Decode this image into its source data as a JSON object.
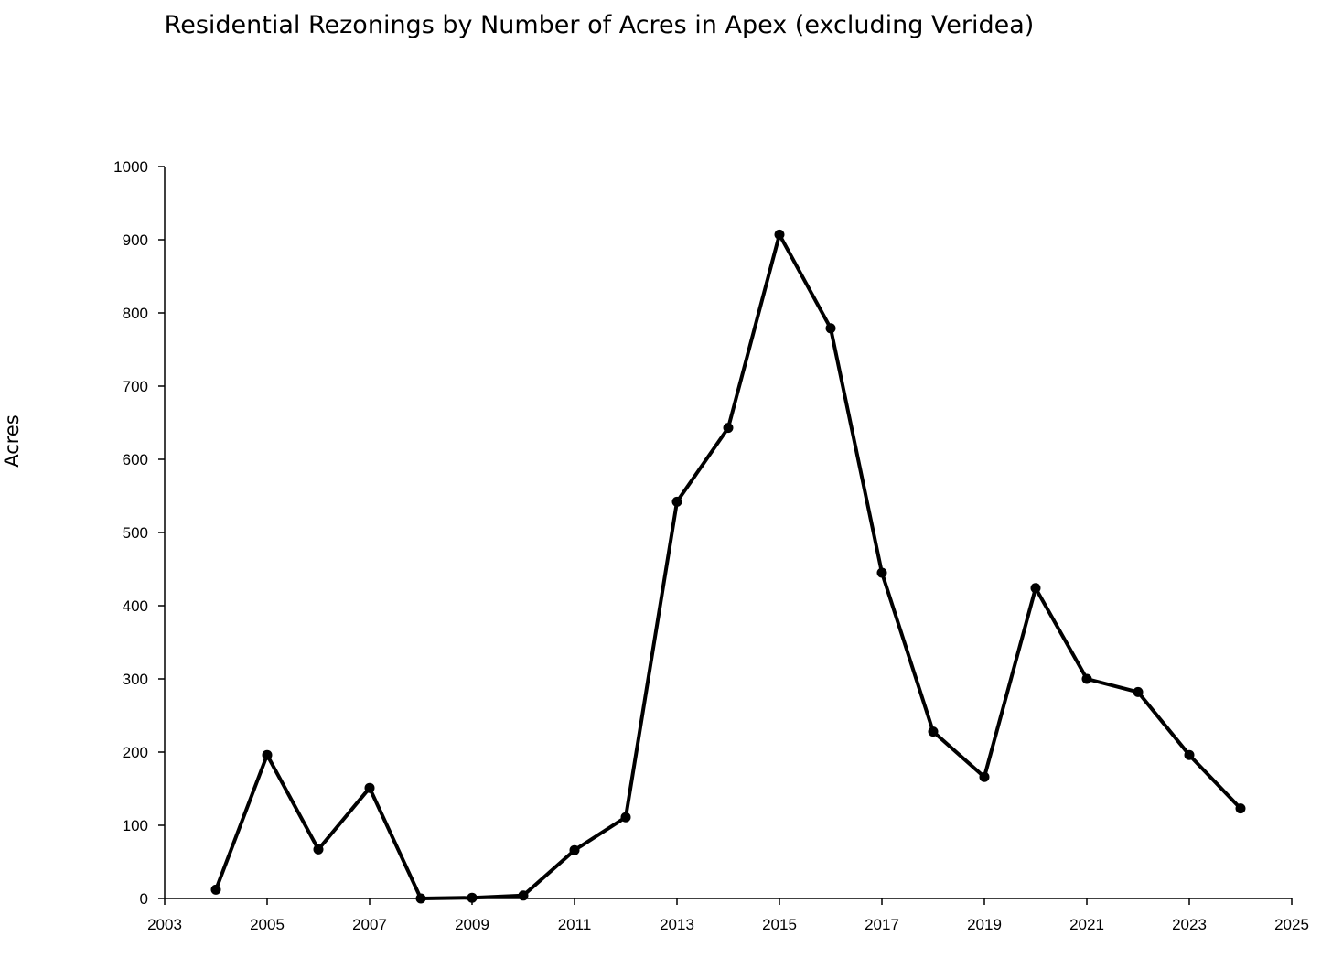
{
  "chart_data": {
    "type": "line",
    "title": "Residential Rezonings by Number of Acres in Apex (excluding Veridea)",
    "xlabel": "",
    "ylabel": "Acres",
    "xlim": [
      2003,
      2025
    ],
    "ylim": [
      0,
      1000
    ],
    "x_ticks": [
      "2003",
      "2005",
      "2007",
      "2009",
      "2011",
      "2013",
      "2015",
      "2017",
      "2019",
      "2021",
      "2023",
      "2025"
    ],
    "y_ticks": [
      "0",
      "100",
      "200",
      "300",
      "400",
      "500",
      "600",
      "700",
      "800",
      "900",
      "1000"
    ],
    "grid": false,
    "legend": "none",
    "line_color": "#000000",
    "series": [
      {
        "x": [
          2004,
          2005,
          2006,
          2007,
          2008,
          2009,
          2010,
          2011,
          2012,
          2013,
          2014,
          2015,
          2016,
          2017,
          2018,
          2019,
          2020,
          2021,
          2022,
          2023,
          2024
        ],
        "values": [
          12,
          196,
          67,
          151,
          0,
          1,
          4,
          66,
          111,
          542,
          643,
          907,
          779,
          445,
          228,
          166,
          424,
          300,
          282,
          196,
          123
        ]
      }
    ]
  }
}
